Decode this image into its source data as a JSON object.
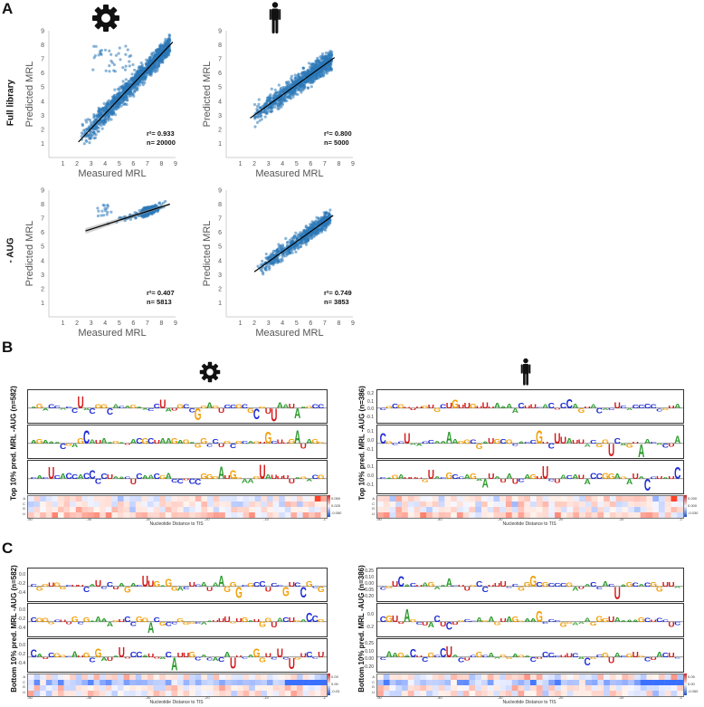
{
  "panels": {
    "a": "A",
    "b": "B",
    "c": "C"
  },
  "icons": {
    "yeast": "gear-icon",
    "human": "human-silhouette-icon"
  },
  "row_labels": {
    "full": "Full library",
    "aug": "- AUG"
  },
  "scatter_labels": {
    "xlabel": "Measured MRL",
    "ylabel": "Predicted MRL"
  },
  "chart_data": [
    {
      "type": "scatter",
      "id": "yeast-full",
      "title": "",
      "xlabel": "Measured MRL",
      "ylabel": "Predicted MRL",
      "xlim": [
        0,
        9
      ],
      "ylim": [
        0,
        9
      ],
      "xticks": [
        1,
        2,
        3,
        4,
        5,
        6,
        7,
        8,
        9
      ],
      "yticks": [
        1,
        2,
        3,
        4,
        5,
        6,
        7,
        8,
        9
      ],
      "fit": {
        "x": [
          2.1,
          8.8
        ],
        "y": [
          1.1,
          8.2
        ]
      },
      "r2": "r²= 0.933",
      "n": "n= 20000"
    },
    {
      "type": "scatter",
      "id": "human-full",
      "title": "",
      "xlabel": "Measured MRL",
      "ylabel": "Predicted MRL",
      "xlim": [
        0,
        9
      ],
      "ylim": [
        0,
        9
      ],
      "xticks": [
        1,
        2,
        3,
        4,
        5,
        6,
        7,
        8,
        9
      ],
      "yticks": [
        1,
        2,
        3,
        4,
        5,
        6,
        7,
        8,
        9
      ],
      "fit": {
        "x": [
          1.7,
          7.7
        ],
        "y": [
          2.8,
          7.1
        ]
      },
      "r2": "r²= 0.800",
      "n": "n= 5000"
    },
    {
      "type": "scatter",
      "id": "yeast-aug",
      "title": "",
      "xlabel": "Measured MRL",
      "ylabel": "Predicted MRL",
      "xlim": [
        0,
        9
      ],
      "ylim": [
        0,
        9
      ],
      "xticks": [
        1,
        2,
        3,
        4,
        5,
        6,
        7,
        8,
        9
      ],
      "yticks": [
        1,
        2,
        3,
        4,
        5,
        6,
        7,
        8,
        9
      ],
      "fit": {
        "x": [
          2.6,
          8.6
        ],
        "y": [
          6.1,
          8.0
        ]
      },
      "r2": "r²= 0.407",
      "n": "n= 5813"
    },
    {
      "type": "scatter",
      "id": "human-aug",
      "title": "",
      "xlabel": "Measured MRL",
      "ylabel": "Predicted MRL",
      "xlim": [
        0,
        9
      ],
      "ylim": [
        0,
        9
      ],
      "xticks": [
        1,
        2,
        3,
        4,
        5,
        6,
        7,
        8,
        9
      ],
      "yticks": [
        1,
        2,
        3,
        4,
        5,
        6,
        7,
        8,
        9
      ],
      "fit": {
        "x": [
          2.0,
          7.6
        ],
        "y": [
          3.2,
          7.2
        ]
      },
      "r2": "r²= 0.749",
      "n": "n= 3853"
    }
  ],
  "panel_b": {
    "yeast_ylabel": "Top 10% pred. MRL -AUG (n=582)",
    "human_ylabel": "Top 10% pred. MRL -AUG (n=386)",
    "human_logo_ticks": [
      [
        "0.2",
        "0.1",
        "0.0",
        "-0.1"
      ],
      [
        "0.1",
        "0.0",
        "-0.1"
      ],
      [
        "0.1",
        "0.0",
        "-0.1"
      ]
    ],
    "heatmap_xlabel": "Nucleotide Distance to TIS",
    "heatmap_rows": [
      "A",
      "C",
      "G",
      "U"
    ],
    "yeast_cbar": [
      "0.050",
      "0.025",
      "-0.050"
    ],
    "human_cbar": [
      "0.030",
      "0.000",
      "-0.030"
    ],
    "heatmap_xticks": [
      "-50",
      "-40",
      "-30",
      "-20",
      "-10",
      "-1"
    ]
  },
  "panel_c": {
    "yeast_ylabel": "Bottom 10% pred. MRL -AUG (n=582)",
    "human_ylabel": "Bottom 10% pred. MRL -AUG (n=386)",
    "yeast_logo_ticks": [
      [
        "0.0",
        "-0.2",
        "-0.4"
      ],
      [
        "0.0",
        "-0.2",
        "-0.4"
      ],
      [
        "0.0",
        "-0.2",
        "-0.4"
      ]
    ],
    "human_logo_ticks": [
      [
        "0.25",
        "0.10",
        "0.00",
        "-0.05",
        "-0.20"
      ],
      [
        "0.0",
        "-0.2"
      ],
      [
        "0.25",
        "0.10",
        "0.00",
        "-0.20"
      ]
    ],
    "heatmap_xlabel": "Nucleotide Distance to TIS",
    "heatmap_rows": [
      "A",
      "C",
      "G",
      "U"
    ],
    "yeast_cbar": [
      "0.03",
      "0.00",
      "-0.03"
    ],
    "human_cbar": [
      "0.05",
      "0.00",
      "-0.050"
    ],
    "heatmap_xticks": [
      "-50",
      "-40",
      "-30",
      "-20",
      "-10",
      "-1"
    ]
  }
}
